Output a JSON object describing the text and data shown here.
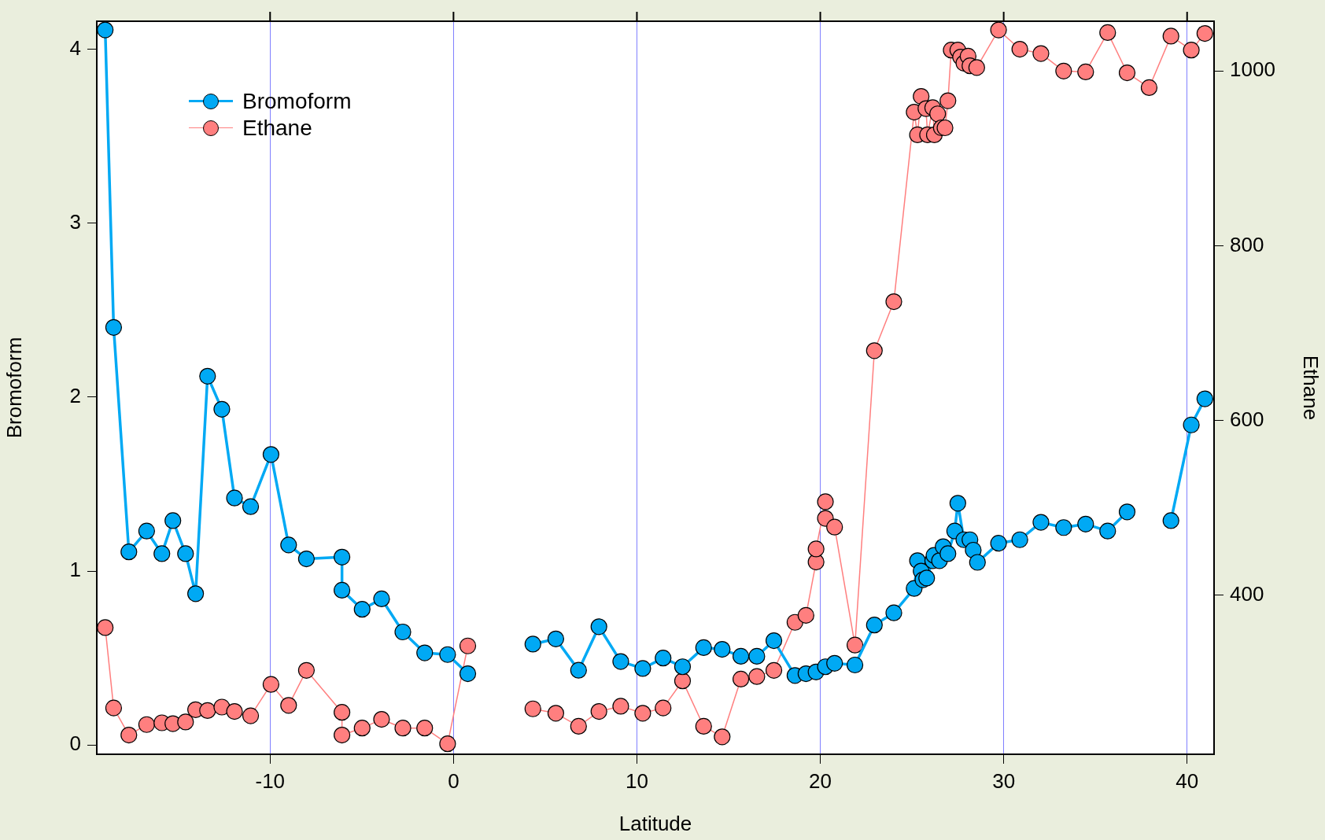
{
  "chart_data": {
    "type": "line",
    "xlabel": "Latitude",
    "ylabel": "Bromoform",
    "y2label": "Ethane",
    "xlim": [
      -19.45,
      41.47
    ],
    "xticks": [
      -10,
      0,
      10,
      20,
      30,
      40
    ],
    "ylim": [
      -0.053,
      4.16
    ],
    "yticks": [
      0,
      1,
      2,
      3,
      4
    ],
    "y2lim": [
      218,
      1057
    ],
    "y2ticks": [
      400,
      600,
      800,
      1000
    ],
    "grid": "x",
    "legend": "top left",
    "marker": "circle",
    "series": [
      {
        "name": "Bromoform",
        "color": "#00a9f4",
        "x": [
          -18.99,
          -18.53,
          -17.7,
          -16.73,
          -15.9,
          -15.3,
          -14.61,
          -14.06,
          -13.41,
          -12.63,
          -11.94,
          -11.06,
          -9.95,
          -8.99,
          -8.02,
          -6.08,
          -6.08,
          -4.98,
          -3.92,
          -2.76,
          -1.57,
          -0.32,
          0.78,
          2.6,
          4.33,
          5.58,
          6.82,
          7.93,
          9.12,
          10.32,
          11.43,
          12.49,
          13.64,
          14.65,
          15.67,
          16.54,
          17.47,
          18.62,
          19.22,
          19.77,
          20.28,
          20.78,
          21.89,
          22.95,
          24.01,
          25.12,
          25.3,
          25.5,
          25.6,
          25.8,
          26.13,
          26.2,
          26.5,
          26.7,
          26.96,
          27.33,
          27.5,
          27.83,
          28.16,
          28.34,
          28.57,
          29.72,
          30.88,
          32.03,
          33.27,
          34.47,
          35.67,
          36.73,
          37.9,
          39.12,
          40.23,
          40.97
        ],
        "values": [
          4.11,
          2.4,
          1.11,
          1.23,
          1.1,
          1.29,
          1.1,
          0.87,
          2.12,
          1.93,
          1.42,
          1.37,
          1.67,
          1.15,
          1.07,
          1.08,
          0.89,
          0.78,
          0.84,
          0.65,
          0.53,
          0.52,
          0.41,
          null,
          0.58,
          0.61,
          0.43,
          0.68,
          0.48,
          0.44,
          0.5,
          0.45,
          0.56,
          0.55,
          0.51,
          0.51,
          0.6,
          0.4,
          0.41,
          0.42,
          0.45,
          0.47,
          0.46,
          0.69,
          0.76,
          0.9,
          1.06,
          1.0,
          0.95,
          0.96,
          1.06,
          1.09,
          1.06,
          1.14,
          1.1,
          1.23,
          1.39,
          1.18,
          1.18,
          1.12,
          1.05,
          1.16,
          1.18,
          1.28,
          1.25,
          1.27,
          1.23,
          1.34,
          null,
          1.29,
          1.84,
          1.99
        ]
      },
      {
        "name": "Ethane",
        "color": "#ff7f7f",
        "axis": "y2",
        "x": [
          -18.99,
          -18.53,
          -17.7,
          -16.73,
          -15.9,
          -15.3,
          -14.61,
          -14.06,
          -13.41,
          -12.63,
          -11.94,
          -11.06,
          -9.95,
          -8.99,
          -8.02,
          -6.08,
          -6.08,
          -4.98,
          -3.92,
          -2.76,
          -1.57,
          -0.32,
          0.78,
          2.6,
          4.33,
          5.58,
          6.82,
          7.93,
          9.12,
          10.32,
          11.43,
          12.49,
          13.64,
          14.65,
          15.67,
          16.54,
          17.47,
          18.62,
          19.22,
          19.77,
          19.77,
          20.28,
          20.28,
          20.78,
          21.89,
          22.95,
          24.01,
          25.12,
          25.3,
          25.5,
          25.76,
          25.85,
          26.13,
          26.22,
          26.4,
          26.6,
          26.8,
          26.96,
          27.14,
          27.5,
          27.65,
          27.83,
          28.06,
          28.16,
          28.53,
          29.72,
          30.88,
          32.03,
          33.27,
          34.47,
          35.67,
          36.73,
          37.93,
          39.12,
          40.23,
          40.97
        ],
        "values": [
          363,
          271,
          240,
          252,
          254,
          253,
          255,
          269,
          268,
          272,
          267,
          262,
          298,
          274,
          314,
          266,
          240,
          248,
          258,
          248,
          248,
          230,
          342,
          null,
          270,
          265,
          250,
          267,
          273,
          265,
          271,
          302,
          250,
          238,
          304,
          307,
          314,
          369,
          377,
          438,
          453,
          507,
          488,
          478,
          343,
          680,
          736,
          953,
          927,
          971,
          957,
          927,
          958,
          927,
          951,
          935,
          935,
          966,
          1024,
          1024,
          1016,
          1009,
          1017,
          1006,
          1004,
          1047,
          1025,
          1020,
          1000,
          999,
          1044,
          998,
          981,
          1040,
          1024,
          1043
        ]
      }
    ]
  }
}
